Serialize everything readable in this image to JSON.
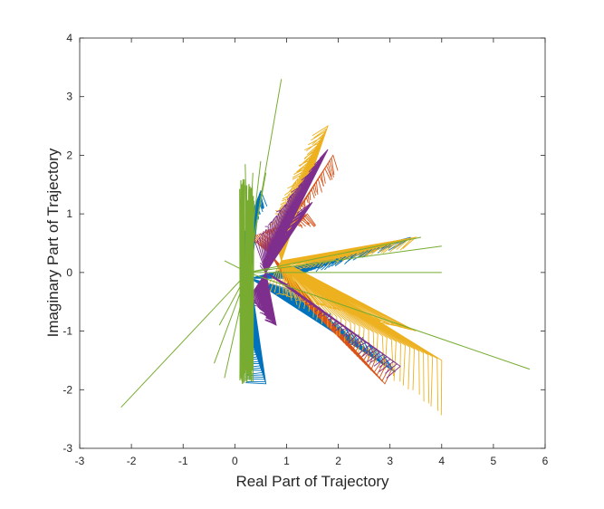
{
  "chart_data": {
    "type": "line",
    "title": "",
    "xlabel": "Real Part of Trajectory",
    "ylabel": "Imaginary Part of Trajectory",
    "xlim": [
      -3,
      6
    ],
    "ylim": [
      -3,
      4
    ],
    "xticks": [
      -3,
      -2,
      -1,
      0,
      1,
      2,
      3,
      4,
      5,
      6
    ],
    "yticks": [
      -3,
      -2,
      -1,
      0,
      1,
      2,
      3,
      4
    ],
    "grid": false,
    "box": true,
    "series": [
      {
        "color": "#0072BD",
        "center": [
          0.3,
          -0.1
        ],
        "lobes": [
          {
            "from": [
              0.1,
              0.5
            ],
            "to": [
              0.5,
              1.4
            ],
            "tip": [
              0.6,
              1.1
            ]
          },
          {
            "from": [
              0.1,
              -0.6
            ],
            "to": [
              0.6,
              -1.9
            ],
            "tip": [
              0.2,
              -1.9
            ]
          },
          {
            "from": [
              1.0,
              -0.1
            ],
            "to": [
              3.4,
              0.6
            ],
            "tip": [
              3.0,
              0.4
            ]
          },
          {
            "from": [
              1.1,
              -0.3
            ],
            "to": [
              3.1,
              -1.7
            ],
            "tip": [
              2.9,
              -1.4
            ]
          }
        ]
      },
      {
        "color": "#D95319",
        "center": [
          0.7,
          0.3
        ],
        "lobes": [
          {
            "from": [
              0.8,
              0.5
            ],
            "to": [
              1.9,
              2.0
            ],
            "tip": [
              2.0,
              1.7
            ]
          },
          {
            "from": [
              1.1,
              -0.3
            ],
            "to": [
              2.9,
              -1.9
            ],
            "tip": [
              3.1,
              -1.6
            ]
          },
          {
            "from": [
              0.3,
              0.6
            ],
            "to": [
              1.4,
              1.0
            ],
            "tip": [
              1.6,
              0.8
            ]
          }
        ]
      },
      {
        "color": "#EDB120",
        "center": [
          0.9,
          0.2
        ],
        "lobes": [
          {
            "from": [
              0.7,
              0.8
            ],
            "to": [
              1.8,
              2.5
            ],
            "tip": [
              1.5,
              2.3
            ]
          },
          {
            "from": [
              1.0,
              -0.4
            ],
            "to": [
              4.0,
              -1.5
            ],
            "tip": [
              4.0,
              -2.5
            ]
          },
          {
            "from": [
              1.0,
              0.0
            ],
            "to": [
              3.5,
              0.6
            ],
            "tip": [
              3.2,
              0.4
            ]
          },
          {
            "from": [
              0.6,
              -0.3
            ],
            "to": [
              3.5,
              -1.0
            ],
            "tip": [
              3.2,
              -0.9
            ]
          }
        ]
      },
      {
        "color": "#7E2F8E",
        "center": [
          0.6,
          0.0
        ],
        "lobes": [
          {
            "from": [
              0.4,
              0.5
            ],
            "to": [
              1.8,
              2.1
            ],
            "tip": [
              1.6,
              1.9
            ]
          },
          {
            "from": [
              1.0,
              -0.2
            ],
            "to": [
              3.2,
              -1.6
            ],
            "tip": [
              2.9,
              -1.8
            ]
          },
          {
            "from": [
              0.5,
              0.1
            ],
            "to": [
              1.5,
              1.2
            ],
            "tip": [
              1.2,
              1.0
            ]
          },
          {
            "from": [
              0.3,
              -0.4
            ],
            "to": [
              0.8,
              -0.9
            ],
            "tip": [
              0.6,
              -0.8
            ]
          }
        ]
      },
      {
        "color": "#77AC30",
        "center": [
          0.25,
          0.0
        ],
        "spikes": [
          [
            -2.2,
            -2.3
          ],
          [
            0.9,
            3.3
          ],
          [
            5.7,
            -1.65
          ],
          [
            4.0,
            0.45
          ],
          [
            4.0,
            0.0
          ],
          [
            3.6,
            0.6
          ],
          [
            0.2,
            1.85
          ],
          [
            0.15,
            -1.9
          ],
          [
            -0.4,
            -1.55
          ],
          [
            -0.2,
            -1.8
          ],
          [
            0.5,
            1.9
          ],
          [
            0.6,
            1.7
          ],
          [
            0.35,
            1.7
          ],
          [
            -0.2,
            0.2
          ],
          [
            -0.3,
            -0.9
          ]
        ],
        "band": {
          "x": [
            0.1,
            0.35
          ],
          "y": [
            -1.9,
            1.6
          ]
        }
      }
    ]
  }
}
